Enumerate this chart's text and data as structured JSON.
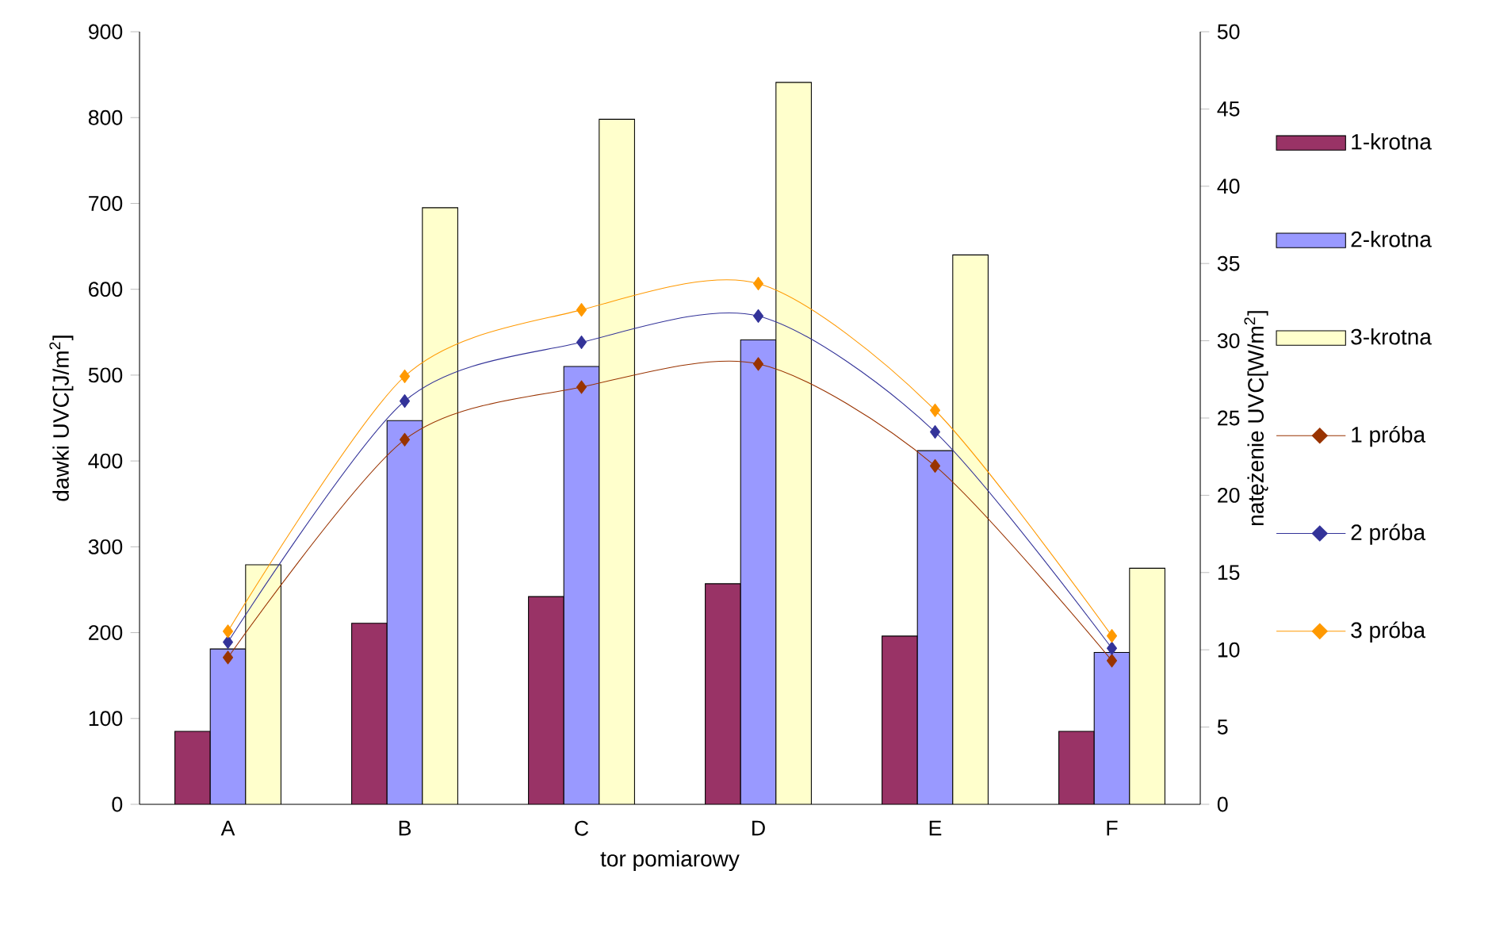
{
  "chart_data": {
    "type": "bar",
    "xlabel": "tor pomiarowy",
    "ylabel": "dawki UVC[J/m$^{2}$]",
    "y2label": "natężenie UVC[W/m$^{2}$]",
    "categories": [
      "A",
      "B",
      "C",
      "D",
      "E",
      "F"
    ],
    "ylim": [
      0,
      900
    ],
    "yticks": [
      0,
      100,
      200,
      300,
      400,
      500,
      600,
      700,
      800,
      900
    ],
    "y2lim": [
      0,
      50
    ],
    "y2ticks": [
      0,
      5,
      10,
      15,
      20,
      25,
      30,
      35,
      40,
      45,
      50
    ],
    "legend": "right",
    "marker": "diamond",
    "series": [
      {
        "name": "1-krotna",
        "color": "#993366",
        "values": [
          85,
          211,
          242,
          257,
          196,
          85
        ]
      },
      {
        "name": "2-krotna",
        "color": "#9999ff",
        "values": [
          181,
          447,
          510,
          541,
          412,
          177
        ]
      },
      {
        "name": "3-krotna",
        "color": "#ffffcc",
        "values": [
          279,
          695,
          798,
          841,
          640,
          275
        ]
      },
      {
        "name": "1 próba",
        "type": "line",
        "axis": "y2",
        "color": "#993300",
        "values": [
          9.5,
          23.6,
          27,
          28.5,
          21.9,
          9.3
        ]
      },
      {
        "name": "2 próba",
        "type": "line",
        "axis": "y2",
        "color": "#333399",
        "values": [
          10.5,
          26.1,
          29.9,
          31.6,
          24.1,
          10.1
        ]
      },
      {
        "name": "3 próba",
        "type": "line",
        "axis": "y2",
        "color": "#ff9900",
        "values": [
          11.2,
          27.7,
          32,
          33.7,
          25.5,
          10.9
        ]
      }
    ]
  }
}
